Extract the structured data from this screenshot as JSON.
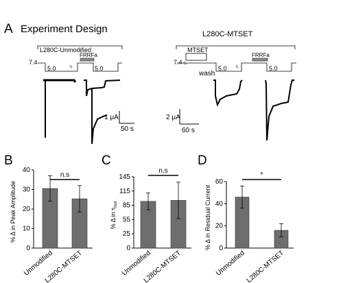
{
  "panel_a": {
    "letter": "A",
    "title": "Experiment Design",
    "left": {
      "label": "L280C-Unmodified",
      "ph_start": "7.4",
      "ph_step": "5.0",
      "ph_step2": "5.0",
      "drug": "FRRFa",
      "scale_current": "1 μA",
      "scale_time": "50 s"
    },
    "right": {
      "label": "L280C-MTSET",
      "ph_start": "7.4",
      "reagent": "MTSET",
      "wash": "wash",
      "ph_step": "5.0",
      "ph_step2": "5.0",
      "drug": "FRRFa",
      "scale_current": "2 μA",
      "scale_time": "60 s"
    }
  },
  "chart_data": [
    {
      "panel": "B",
      "type": "bar",
      "categories": [
        "Unmodified",
        "L280C-MTSET"
      ],
      "values": [
        30.5,
        25.2
      ],
      "errors": [
        6.5,
        6.8
      ],
      "ylabel": "% Δ in Peak Amplitude",
      "ylim": [
        0,
        40
      ],
      "yticks": [
        "0",
        "10",
        "20",
        "30",
        "40"
      ],
      "significance": "n.s",
      "bar_color": "#6e6e6e"
    },
    {
      "panel": "C",
      "type": "bar",
      "categories": [
        "Unmodified",
        "L280C-MTSET"
      ],
      "values": [
        95,
        97
      ],
      "errors": [
        17,
        37
      ],
      "ylabel": "% Δ in τ",
      "ylabel_sub": "fast",
      "ylim": [
        0,
        145
      ],
      "yticks": [
        "0",
        "25",
        "55",
        "85",
        "115",
        "145"
      ],
      "significance": "n.s",
      "bar_color": "#6e6e6e"
    },
    {
      "panel": "D",
      "type": "bar",
      "categories": [
        "Unmodified",
        "L280C-MTSET"
      ],
      "values": [
        46,
        16
      ],
      "errors": [
        10,
        6
      ],
      "ylabel": "% Δ in Residual Current",
      "ylim": [
        0,
        60
      ],
      "yticks": [
        "0",
        "20",
        "40",
        "60"
      ],
      "significance": "*",
      "bar_color": "#6e6e6e"
    }
  ]
}
